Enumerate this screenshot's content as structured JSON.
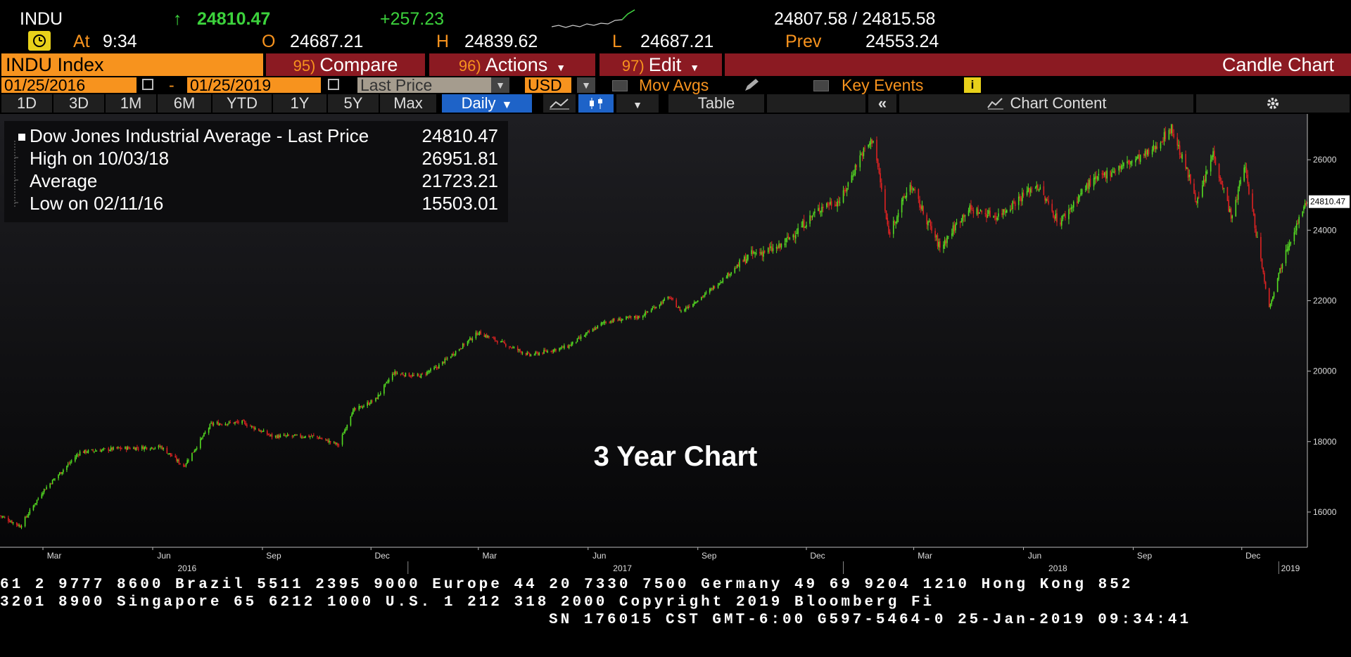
{
  "header": {
    "ticker": "INDU",
    "arrow": "↑",
    "last": "24810.47",
    "change": "+257.23",
    "bid_ask": "24807.58 / 24815.58",
    "at_label": "At",
    "time": "9:34",
    "open_label": "O",
    "open": "24687.21",
    "high_label": "H",
    "high": "24839.62",
    "low_label": "L",
    "low": "24687.21",
    "prev_label": "Prev",
    "prev": "24553.24"
  },
  "toolbar": {
    "security": "INDU Index",
    "compare_key": "95)",
    "compare": "Compare",
    "actions_key": "96)",
    "actions": "Actions",
    "edit_key": "97)",
    "edit": "Edit",
    "chart_type": "Candle Chart"
  },
  "settings": {
    "start_date": "01/25/2016",
    "dash": "-",
    "end_date": "01/25/2019",
    "field": "Last Price",
    "currency": "USD",
    "mov_avgs": "Mov Avgs",
    "key_events": "Key Events"
  },
  "periods": [
    "1D",
    "3D",
    "1M",
    "6M",
    "YTD",
    "1Y",
    "5Y",
    "Max"
  ],
  "frequency": "Daily",
  "table_label": "Table",
  "chart_content_label": "Chart Content",
  "legend": {
    "rows": [
      {
        "label": "Dow Jones Industrial Average - Last Price",
        "value": "24810.47"
      },
      {
        "label": "High on 10/03/18",
        "value": "26951.81"
      },
      {
        "label": "Average",
        "value": "21723.21"
      },
      {
        "label": "Low on 02/11/16",
        "value": "15503.01"
      }
    ]
  },
  "chart_data": {
    "type": "line",
    "annotation": "3 Year Chart",
    "last_price_tag": "24810.47",
    "ylim": [
      15000,
      27300
    ],
    "y_ticks": [
      16000,
      18000,
      20000,
      22000,
      24000,
      26000
    ],
    "x_range": [
      "2016-01-25",
      "2019-01-25"
    ],
    "x_month_ticks": [
      "Mar",
      "Jun",
      "Sep",
      "Dec",
      "Mar",
      "Jun",
      "Sep",
      "Dec",
      "Mar",
      "Jun",
      "Sep",
      "Dec"
    ],
    "x_year_labels": [
      "2016",
      "2017",
      "2018",
      "2019"
    ],
    "grid": false,
    "up_color": "#55dd22",
    "down_color": "#dd2222",
    "series": [
      {
        "x": [
          "2016-01-25",
          "2016-02-11",
          "2016-03-01",
          "2016-04-01",
          "2016-05-01",
          "2016-06-08",
          "2016-06-27",
          "2016-07-20",
          "2016-08-15",
          "2016-09-09",
          "2016-10-15",
          "2016-11-04",
          "2016-11-15",
          "2016-12-05",
          "2016-12-20",
          "2017-01-10",
          "2017-01-25",
          "2017-03-01",
          "2017-04-13",
          "2017-05-15",
          "2017-06-15",
          "2017-07-15",
          "2017-08-08",
          "2017-08-18",
          "2017-09-08",
          "2017-10-15",
          "2017-11-08",
          "2017-12-15",
          "2017-12-30",
          "2018-01-15",
          "2018-01-26",
          "2018-02-08",
          "2018-02-26",
          "2018-03-23",
          "2018-04-15",
          "2018-05-10",
          "2018-06-12",
          "2018-07-01",
          "2018-07-25",
          "2018-08-15",
          "2018-09-15",
          "2018-10-03",
          "2018-10-25",
          "2018-11-07",
          "2018-11-23",
          "2018-12-03",
          "2018-12-24",
          "2019-01-07",
          "2019-01-25"
        ],
        "values": [
          15900,
          15600,
          16600,
          17700,
          17800,
          17850,
          17300,
          18500,
          18550,
          18150,
          18150,
          17900,
          18850,
          19200,
          19950,
          19850,
          20100,
          21100,
          20450,
          20700,
          21400,
          21550,
          22100,
          21700,
          22200,
          23300,
          23500,
          24700,
          24850,
          26100,
          26600,
          23900,
          25300,
          23500,
          24600,
          24400,
          25300,
          24200,
          25300,
          25700,
          26200,
          26900,
          24800,
          26200,
          24300,
          25900,
          21800,
          23500,
          24810
        ]
      }
    ]
  },
  "footer": {
    "line1": "61 2 9777 8600 Brazil 5511 2395 9000 Europe 44 20 7330 7500 Germany 49 69 9204 1210 Hong Kong 852",
    "line2": " 3201 8900      Singapore 65 6212 1000      U.S. 1 212 318 2000       Copyright 2019 Bloomberg Fi",
    "line3": "SN 176015 CST  GMT-6:00 G597-5464-0 25-Jan-2019 09:34:41"
  }
}
